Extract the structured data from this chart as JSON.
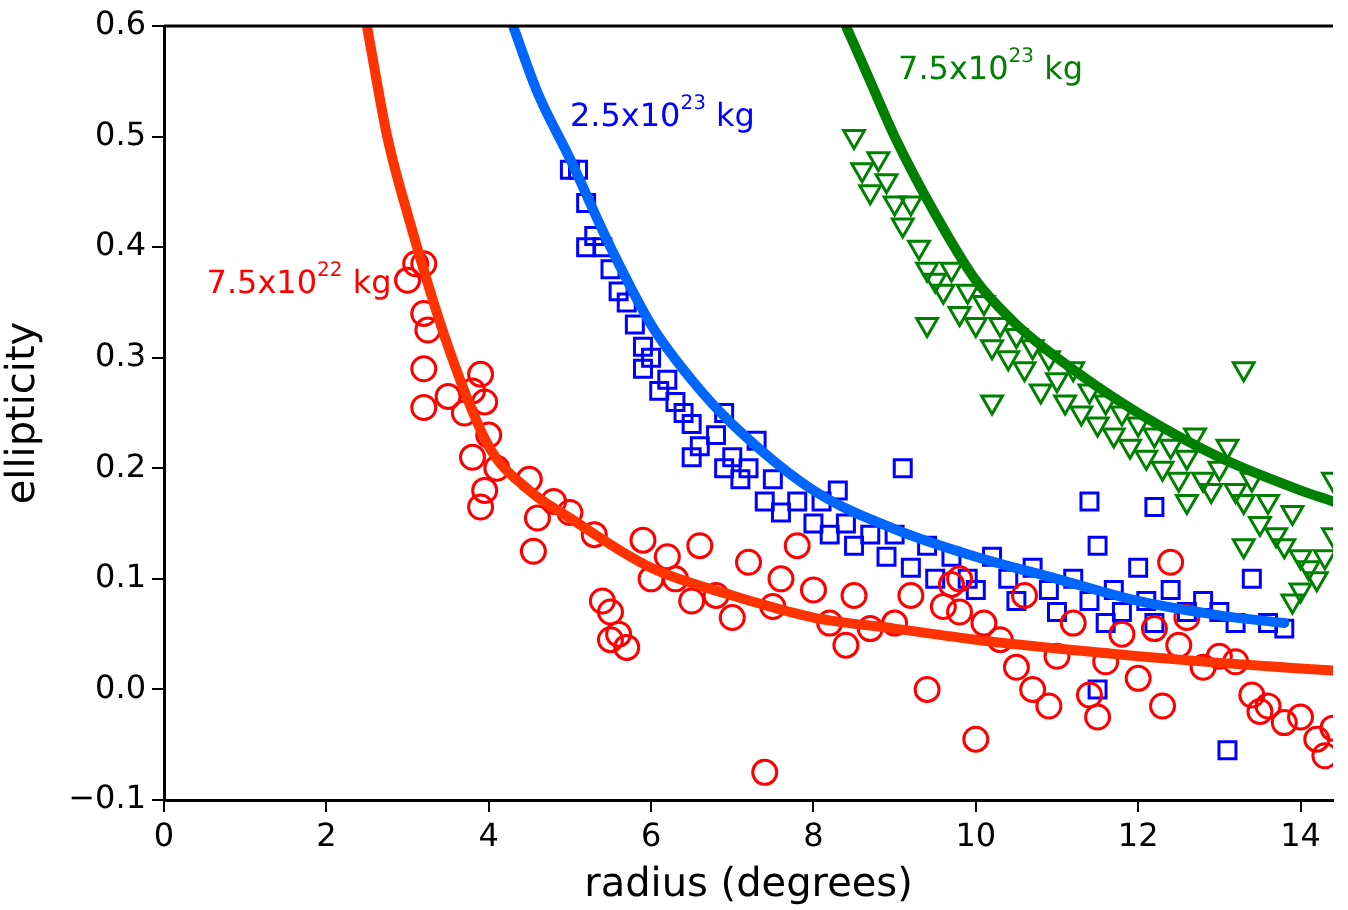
{
  "chart_data": {
    "type": "scatter",
    "xlabel": "radius (degrees)",
    "ylabel": "ellipticity",
    "xlim": [
      0,
      14.4
    ],
    "xticks": [
      0,
      2,
      4,
      6,
      8,
      10,
      12,
      14
    ],
    "ylim": [
      -0.1,
      0.6
    ],
    "yticks": [
      {
        "value": -0.1,
        "label": "−0.1"
      },
      {
        "value": 0,
        "label": "0.0"
      },
      0.1,
      0.2,
      0.3,
      0.4,
      0.5,
      0.6
    ],
    "grid": false,
    "legend": false,
    "series": [
      {
        "name": "7.5x10$^{22}$ kg",
        "marker": "circle",
        "color": "#ff0000",
        "x": [
          3.0,
          3.1,
          3.2,
          3.2,
          3.25,
          3.2,
          3.2,
          3.5,
          3.7,
          3.8,
          3.9,
          3.95,
          4.0,
          3.8,
          3.9,
          3.95,
          4.1,
          4.5,
          4.6,
          4.55,
          4.8,
          5.0,
          5.3,
          5.4,
          5.5,
          5.5,
          5.6,
          5.7,
          5.9,
          6.0,
          6.2,
          6.3,
          6.5,
          6.6,
          6.8,
          7.0,
          7.2,
          7.4,
          7.5,
          7.6,
          7.8,
          8.0,
          8.2,
          8.4,
          8.5,
          8.7,
          9.0,
          9.2,
          9.4,
          9.6,
          9.7,
          9.8,
          10.0,
          10.1,
          10.3,
          10.5,
          10.6,
          10.7,
          10.9,
          11.0,
          11.2,
          11.4,
          11.5,
          11.6,
          11.8,
          12.0,
          12.2,
          12.3,
          12.5,
          12.6,
          12.8,
          13.0,
          13.2,
          13.4,
          13.5,
          13.6,
          13.8,
          14.0,
          14.2,
          14.3,
          14.4,
          12.4,
          9.8
        ],
        "values": [
          0.37,
          0.385,
          0.385,
          0.34,
          0.325,
          0.29,
          0.255,
          0.265,
          0.25,
          0.27,
          0.285,
          0.26,
          0.23,
          0.21,
          0.165,
          0.18,
          0.2,
          0.19,
          0.155,
          0.125,
          0.17,
          0.16,
          0.14,
          0.08,
          0.07,
          0.045,
          0.05,
          0.038,
          0.135,
          0.1,
          0.12,
          0.1,
          0.08,
          0.13,
          0.085,
          0.065,
          0.115,
          -0.075,
          0.075,
          0.1,
          0.13,
          0.09,
          0.06,
          0.04,
          0.085,
          0.055,
          0.06,
          0.085,
          0.0,
          0.075,
          0.095,
          0.07,
          -0.045,
          0.06,
          0.045,
          0.02,
          0.085,
          0.0,
          -0.015,
          0.03,
          0.06,
          -0.005,
          -0.025,
          0.025,
          0.05,
          0.01,
          0.055,
          -0.015,
          0.04,
          0.065,
          0.02,
          0.03,
          0.025,
          -0.005,
          -0.02,
          -0.015,
          -0.03,
          -0.025,
          -0.045,
          -0.06,
          -0.035,
          0.115,
          0.1
        ]
      },
      {
        "name": "2.5x10$^{23}$ kg",
        "marker": "square",
        "color": "#0000ff",
        "x": [
          5.0,
          5.1,
          5.2,
          5.2,
          5.3,
          5.4,
          5.5,
          5.6,
          5.7,
          5.8,
          5.9,
          5.9,
          6.0,
          6.1,
          6.2,
          6.3,
          6.4,
          6.5,
          6.5,
          6.6,
          6.8,
          6.9,
          7.0,
          7.1,
          7.2,
          7.4,
          7.5,
          7.6,
          7.8,
          8.0,
          8.1,
          8.2,
          8.4,
          8.5,
          8.7,
          8.9,
          9.0,
          9.2,
          9.4,
          9.5,
          9.7,
          9.9,
          10.0,
          10.2,
          10.4,
          10.5,
          10.7,
          10.9,
          11.0,
          11.2,
          11.4,
          11.5,
          11.6,
          11.7,
          11.8,
          12.0,
          12.1,
          12.2,
          12.4,
          12.6,
          12.8,
          13.0,
          13.2,
          13.4,
          13.6,
          13.8,
          11.4,
          12.2,
          9.1,
          13.1,
          11.5,
          6.9,
          7.3,
          8.3
        ],
        "values": [
          0.47,
          0.47,
          0.44,
          0.4,
          0.41,
          0.4,
          0.38,
          0.36,
          0.35,
          0.33,
          0.31,
          0.29,
          0.3,
          0.27,
          0.28,
          0.26,
          0.25,
          0.24,
          0.21,
          0.22,
          0.23,
          0.2,
          0.21,
          0.19,
          0.2,
          0.17,
          0.19,
          0.16,
          0.17,
          0.15,
          0.17,
          0.14,
          0.15,
          0.13,
          0.14,
          0.12,
          0.14,
          0.11,
          0.13,
          0.1,
          0.12,
          0.1,
          0.09,
          0.12,
          0.1,
          0.08,
          0.11,
          0.09,
          0.07,
          0.1,
          0.08,
          0.13,
          0.06,
          0.09,
          0.07,
          0.11,
          0.08,
          0.06,
          0.09,
          0.07,
          0.08,
          0.07,
          0.06,
          0.1,
          0.06,
          0.055,
          0.17,
          0.165,
          0.2,
          -0.055,
          0.0,
          0.25,
          0.225,
          0.18
        ]
      },
      {
        "name": "7.5x10$^{23}$ kg",
        "marker": "triangle",
        "color": "#008000",
        "x": [
          8.5,
          8.6,
          8.7,
          8.8,
          8.9,
          9.0,
          9.1,
          9.2,
          9.3,
          9.4,
          9.5,
          9.6,
          9.7,
          9.8,
          9.9,
          10.0,
          10.1,
          10.2,
          10.3,
          10.4,
          10.5,
          10.6,
          10.7,
          10.8,
          10.9,
          11.0,
          11.1,
          11.2,
          11.3,
          11.4,
          11.5,
          11.6,
          11.7,
          11.8,
          11.9,
          12.0,
          12.1,
          12.2,
          12.3,
          12.4,
          12.5,
          12.6,
          12.7,
          12.8,
          12.9,
          13.0,
          13.1,
          13.2,
          13.3,
          13.4,
          13.5,
          13.6,
          13.7,
          13.8,
          13.9,
          14.0,
          14.1,
          14.2,
          14.3,
          14.4,
          13.3,
          14.4,
          13.9,
          14.0,
          9.4,
          10.2,
          12.6,
          13.3
        ],
        "values": [
          0.5,
          0.47,
          0.45,
          0.48,
          0.46,
          0.44,
          0.42,
          0.44,
          0.4,
          0.38,
          0.37,
          0.36,
          0.38,
          0.34,
          0.36,
          0.33,
          0.35,
          0.31,
          0.33,
          0.3,
          0.32,
          0.29,
          0.31,
          0.27,
          0.3,
          0.28,
          0.26,
          0.29,
          0.25,
          0.27,
          0.24,
          0.26,
          0.23,
          0.25,
          0.22,
          0.24,
          0.21,
          0.23,
          0.2,
          0.22,
          0.19,
          0.21,
          0.23,
          0.19,
          0.18,
          0.2,
          0.22,
          0.18,
          0.17,
          0.19,
          0.15,
          0.17,
          0.14,
          0.13,
          0.16,
          0.12,
          0.11,
          0.1,
          0.12,
          0.14,
          0.29,
          0.19,
          0.08,
          0.09,
          0.33,
          0.26,
          0.17,
          0.13
        ]
      },
      {
        "type": "line",
        "marker": "none",
        "color": "#ff3300",
        "x": [
          2.5,
          2.75,
          3,
          3.5,
          4,
          4.5,
          5,
          6,
          7,
          8,
          9,
          10,
          11,
          12,
          13,
          14.4
        ],
        "values": [
          0.6,
          0.5,
          0.43,
          0.31,
          0.22,
          0.18,
          0.155,
          0.11,
          0.085,
          0.065,
          0.055,
          0.045,
          0.037,
          0.03,
          0.024,
          0.017
        ]
      },
      {
        "type": "line",
        "marker": "none",
        "color": "#0066ff",
        "x": [
          4.3,
          4.6,
          5,
          5.5,
          6,
          6.5,
          7,
          8,
          9,
          10,
          11,
          12,
          13,
          13.8
        ],
        "values": [
          0.6,
          0.54,
          0.48,
          0.4,
          0.33,
          0.28,
          0.24,
          0.18,
          0.145,
          0.12,
          0.1,
          0.08,
          0.067,
          0.06
        ]
      },
      {
        "type": "line",
        "marker": "none",
        "color": "#008000",
        "x": [
          8.4,
          8.7,
          9,
          9.5,
          10,
          10.5,
          11,
          12,
          13,
          14,
          14.4
        ],
        "values": [
          0.6,
          0.55,
          0.5,
          0.43,
          0.37,
          0.33,
          0.3,
          0.25,
          0.21,
          0.18,
          0.17
        ]
      }
    ]
  }
}
